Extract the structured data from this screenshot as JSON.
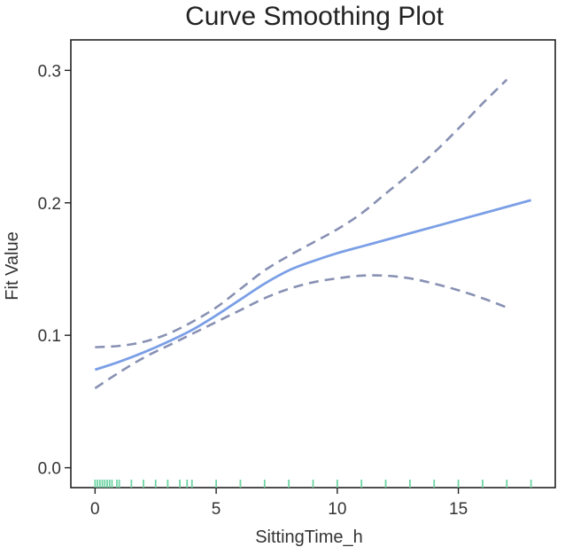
{
  "chart_data": {
    "type": "line",
    "title": "Curve Smoothing Plot",
    "xlabel": "SittingTime_h",
    "ylabel": "Fit Value",
    "xlim": [
      -1.0,
      19.0
    ],
    "ylim": [
      -0.015,
      0.323
    ],
    "xticks": [
      0,
      5,
      10,
      15
    ],
    "yticks": [
      0.0,
      0.1,
      0.2,
      0.3
    ],
    "xtick_labels": [
      "0",
      "5",
      "10",
      "15"
    ],
    "ytick_labels": [
      "0.0",
      "0.1",
      "0.2",
      "0.3"
    ],
    "grid": false,
    "series": [
      {
        "name": "fit",
        "style": "solid",
        "color": "#7b9fe6",
        "x": [
          0,
          1,
          2,
          3,
          4,
          5,
          6,
          7,
          8,
          9,
          10,
          11,
          12,
          13,
          14,
          15,
          16,
          17,
          18
        ],
        "values": [
          0.074,
          0.08,
          0.087,
          0.095,
          0.104,
          0.115,
          0.127,
          0.139,
          0.149,
          0.156,
          0.162,
          0.167,
          0.172,
          0.177,
          0.182,
          0.187,
          0.192,
          0.197,
          0.202
        ]
      },
      {
        "name": "upper",
        "style": "dashed",
        "color": "#8891b3",
        "x": [
          0,
          1,
          2,
          3,
          4,
          5,
          6,
          7,
          8,
          9,
          10,
          11,
          12,
          13,
          14,
          15,
          16,
          17
        ],
        "values": [
          0.091,
          0.092,
          0.095,
          0.101,
          0.11,
          0.121,
          0.135,
          0.149,
          0.16,
          0.17,
          0.18,
          0.192,
          0.207,
          0.222,
          0.238,
          0.256,
          0.275,
          0.293
        ]
      },
      {
        "name": "lower",
        "style": "dashed",
        "color": "#8891b3",
        "x": [
          0,
          1,
          2,
          3,
          4,
          5,
          6,
          7,
          8,
          9,
          10,
          11,
          12,
          13,
          14,
          15,
          16,
          17
        ],
        "values": [
          0.06,
          0.072,
          0.083,
          0.092,
          0.101,
          0.11,
          0.119,
          0.128,
          0.135,
          0.14,
          0.143,
          0.145,
          0.145,
          0.143,
          0.139,
          0.134,
          0.128,
          0.121
        ]
      }
    ],
    "rug": {
      "color": "#6fd4a4",
      "x": [
        0.0,
        0.1,
        0.2,
        0.3,
        0.4,
        0.5,
        0.6,
        0.7,
        0.9,
        1.0,
        1.5,
        2.0,
        2.5,
        3.0,
        3.5,
        3.8,
        4.0,
        5.0,
        6.0,
        7.0,
        8.0,
        9.0,
        10.0,
        11.0,
        12.0,
        13.0,
        14.0,
        15.0,
        16.0,
        17.0,
        18.0
      ]
    }
  }
}
